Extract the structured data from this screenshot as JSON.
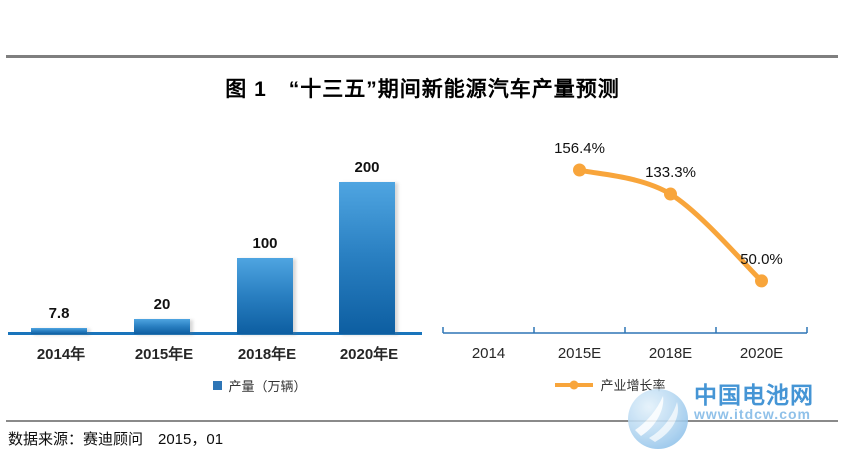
{
  "title": "图 1　“十三五”期间新能源汽车产量预测",
  "source": "数据来源：赛迪顾问　2015，01",
  "watermark": {
    "name": "中国电池网",
    "url": "www.itdcw.com"
  },
  "colors": {
    "bar_gradient_top": "#4fa5e1",
    "bar_gradient_bottom": "#0d5ea1",
    "bar_axis": "#1a75bc",
    "line_series": "#f8a53b",
    "line_axis": "#2e75b5",
    "rule_gray": "#7f7f7f",
    "watermark_blue": "#4595d5"
  },
  "chart_data": [
    {
      "type": "bar",
      "title": "",
      "categories": [
        "2014年",
        "2015年E",
        "2018年E",
        "2020年E"
      ],
      "values": [
        7.8,
        20,
        100,
        200
      ],
      "value_labels": [
        "7.8",
        "20",
        "100",
        "200"
      ],
      "legend": "产量（万辆）",
      "legend_position": "bottom",
      "xlabel": "",
      "ylabel": "",
      "ylim": [
        0,
        220
      ],
      "grid": false
    },
    {
      "type": "line",
      "title": "",
      "categories": [
        "2014",
        "2015E",
        "2018E",
        "2020E"
      ],
      "values": [
        null,
        156.4,
        133.3,
        50.0
      ],
      "value_labels": [
        "",
        "156.4%",
        "133.3%",
        "50.0%"
      ],
      "legend": "产业增长率",
      "legend_position": "bottom",
      "xlabel": "",
      "ylabel": "",
      "ylim": [
        0,
        180
      ],
      "grid": false,
      "marker": "circle",
      "smooth": true
    }
  ]
}
